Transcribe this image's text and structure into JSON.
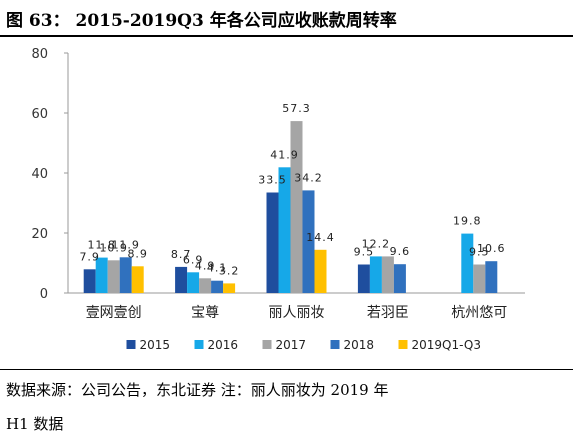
{
  "figure": {
    "title": "图 63：  2015-2019Q3 年各公司应收账款周转率",
    "source_line1": "数据来源：公司公告，东北证券  注：丽人丽妆为 2019 年",
    "source_line2": "H1 数据"
  },
  "chart_data": {
    "type": "bar",
    "title": "",
    "xlabel": "",
    "ylabel": "",
    "ylim": [
      0,
      80
    ],
    "yticks": [
      0,
      20,
      40,
      60,
      80
    ],
    "grid": false,
    "legend_position": "bottom",
    "categories": [
      "壹网壹创",
      "宝尊",
      "丽人丽妆",
      "若羽臣",
      "杭州悠可"
    ],
    "series": [
      {
        "name": "2015",
        "color": "#1F4E9E",
        "values": [
          7.9,
          8.7,
          33.5,
          9.5,
          null
        ],
        "labels": [
          "7.9",
          "8.7",
          "33.5",
          "9.5",
          ""
        ]
      },
      {
        "name": "2016",
        "color": "#16A8E8",
        "values": [
          11.8,
          6.9,
          41.9,
          12.2,
          19.8
        ],
        "labels": [
          "11.8",
          "6.9",
          "41.9",
          "12.2",
          "19.8"
        ]
      },
      {
        "name": "2017",
        "color": "#A5A5A5",
        "values": [
          10.9,
          4.9,
          57.3,
          12.2,
          9.5
        ],
        "labels": [
          "10.9",
          "4.9",
          "57.3",
          "",
          "9.5"
        ]
      },
      {
        "name": "2018",
        "color": "#3071BE",
        "values": [
          11.9,
          4.1,
          34.2,
          9.6,
          10.6
        ],
        "labels": [
          "11.9",
          "4.1",
          "34.2",
          "9.6",
          "10.6"
        ]
      },
      {
        "name": "2019Q1-Q3",
        "color": "#FFC000",
        "values": [
          8.9,
          3.2,
          14.4,
          null,
          null
        ],
        "labels": [
          "8.9",
          "3.2",
          "14.4",
          "",
          ""
        ]
      }
    ]
  }
}
